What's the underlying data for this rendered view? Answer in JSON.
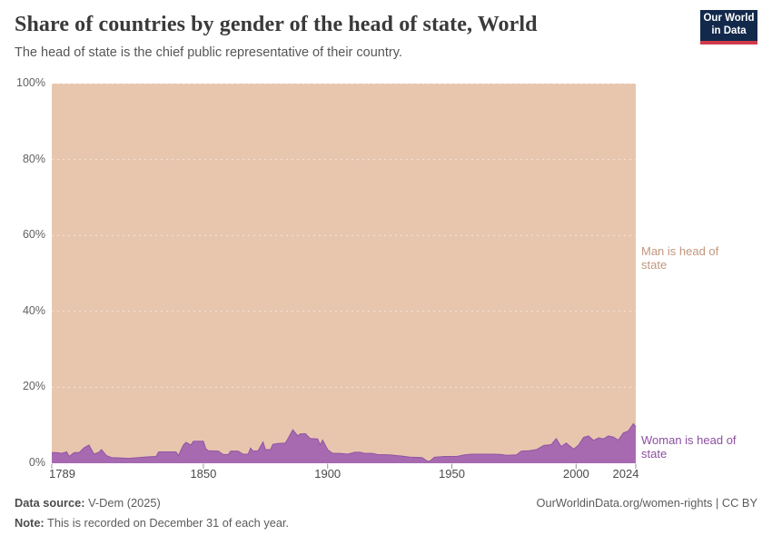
{
  "header": {
    "title": "Share of countries by gender of the head of state, World",
    "subtitle": "The head of state is the chief public representative of their country.",
    "logo": {
      "line1": "Our World",
      "line2": "in Data",
      "bg_color": "#12294b",
      "bar_color": "#cf3b4b"
    }
  },
  "chart_data": {
    "type": "area",
    "stacked": true,
    "title": "Share of countries by gender of the head of state, World",
    "xlabel": "",
    "ylabel": "",
    "x_range": [
      1789,
      2024
    ],
    "y_range": [
      0,
      100
    ],
    "grid": "dashed horizontal at 20% steps",
    "legend_position": "right-edge entity labels",
    "y_ticks": [
      {
        "value": 100,
        "label": "100%"
      },
      {
        "value": 80,
        "label": "80%"
      },
      {
        "value": 60,
        "label": "60%"
      },
      {
        "value": 40,
        "label": "40%"
      },
      {
        "value": 20,
        "label": "20%"
      },
      {
        "value": 0,
        "label": "0%"
      }
    ],
    "x_ticks": [
      {
        "value": 1789,
        "label": "1789",
        "align": "first"
      },
      {
        "value": 1850,
        "label": "1850",
        "align": "center"
      },
      {
        "value": 1900,
        "label": "1900",
        "align": "center"
      },
      {
        "value": 1950,
        "label": "1950",
        "align": "center"
      },
      {
        "value": 2000,
        "label": "2000",
        "align": "center"
      },
      {
        "value": 2024,
        "label": "2024",
        "align": "last"
      }
    ],
    "series": [
      {
        "name": "Woman is head of state",
        "fill_color": "#a76ab1",
        "stroke_color": "#9055a3",
        "label_color": "#8d4fa0",
        "unit": "% of countries",
        "points": [
          [
            1789,
            2.8
          ],
          [
            1791,
            2.8
          ],
          [
            1793,
            2.6
          ],
          [
            1795,
            3.0
          ],
          [
            1796,
            1.8
          ],
          [
            1798,
            2.8
          ],
          [
            1800,
            2.8
          ],
          [
            1802,
            4.1
          ],
          [
            1804,
            4.8
          ],
          [
            1806,
            2.4
          ],
          [
            1808,
            2.9
          ],
          [
            1809,
            3.6
          ],
          [
            1811,
            2.0
          ],
          [
            1813,
            1.5
          ],
          [
            1816,
            1.4
          ],
          [
            1820,
            1.3
          ],
          [
            1824,
            1.5
          ],
          [
            1828,
            1.7
          ],
          [
            1831,
            1.8
          ],
          [
            1832,
            3.0
          ],
          [
            1835,
            3.0
          ],
          [
            1839,
            3.0
          ],
          [
            1840,
            2.0
          ],
          [
            1841,
            3.5
          ],
          [
            1842,
            4.8
          ],
          [
            1843,
            5.5
          ],
          [
            1845,
            4.8
          ],
          [
            1846,
            5.8
          ],
          [
            1850,
            5.8
          ],
          [
            1851,
            3.8
          ],
          [
            1852,
            3.3
          ],
          [
            1856,
            3.2
          ],
          [
            1858,
            2.3
          ],
          [
            1860,
            2.3
          ],
          [
            1861,
            3.2
          ],
          [
            1864,
            3.2
          ],
          [
            1866,
            2.4
          ],
          [
            1868,
            2.4
          ],
          [
            1869,
            4.0
          ],
          [
            1870,
            3.2
          ],
          [
            1872,
            3.3
          ],
          [
            1874,
            5.6
          ],
          [
            1875,
            3.6
          ],
          [
            1877,
            3.6
          ],
          [
            1878,
            5.0
          ],
          [
            1880,
            5.2
          ],
          [
            1883,
            5.3
          ],
          [
            1884,
            6.4
          ],
          [
            1886,
            8.8
          ],
          [
            1888,
            7.2
          ],
          [
            1889,
            7.7
          ],
          [
            1891,
            7.8
          ],
          [
            1893,
            6.5
          ],
          [
            1896,
            6.4
          ],
          [
            1897,
            4.8
          ],
          [
            1898,
            6.1
          ],
          [
            1900,
            3.6
          ],
          [
            1902,
            2.6
          ],
          [
            1905,
            2.6
          ],
          [
            1908,
            2.4
          ],
          [
            1911,
            2.9
          ],
          [
            1913,
            2.9
          ],
          [
            1915,
            2.6
          ],
          [
            1918,
            2.6
          ],
          [
            1920,
            2.3
          ],
          [
            1925,
            2.2
          ],
          [
            1930,
            1.9
          ],
          [
            1933,
            1.6
          ],
          [
            1938,
            1.5
          ],
          [
            1940,
            0.6
          ],
          [
            1941,
            0.5
          ],
          [
            1943,
            1.6
          ],
          [
            1947,
            1.8
          ],
          [
            1952,
            1.8
          ],
          [
            1955,
            2.2
          ],
          [
            1958,
            2.4
          ],
          [
            1963,
            2.4
          ],
          [
            1967,
            2.4
          ],
          [
            1970,
            2.3
          ],
          [
            1972,
            2.1
          ],
          [
            1976,
            2.2
          ],
          [
            1978,
            3.2
          ],
          [
            1981,
            3.3
          ],
          [
            1984,
            3.6
          ],
          [
            1987,
            4.7
          ],
          [
            1990,
            4.9
          ],
          [
            1992,
            6.5
          ],
          [
            1994,
            4.4
          ],
          [
            1996,
            5.3
          ],
          [
            1999,
            3.7
          ],
          [
            2001,
            4.8
          ],
          [
            2003,
            6.8
          ],
          [
            2005,
            7.2
          ],
          [
            2007,
            6.0
          ],
          [
            2009,
            6.7
          ],
          [
            2011,
            6.4
          ],
          [
            2013,
            7.2
          ],
          [
            2015,
            6.9
          ],
          [
            2017,
            6.1
          ],
          [
            2019,
            8.0
          ],
          [
            2021,
            8.5
          ],
          [
            2023,
            10.4
          ],
          [
            2024,
            9.6
          ]
        ]
      },
      {
        "name": "Man is head of state",
        "fill_color": "#e8c6ae",
        "label_color": "#c0977f",
        "unit": "% of countries",
        "derivation": "100 minus woman share (stacked remainder to 100%)"
      }
    ]
  },
  "footer": {
    "data_source_label": "Data source:",
    "data_source_value": " V-Dem (2025)",
    "note_label": "Note:",
    "note_value": " This is recorded on December 31 of each year.",
    "link": "OurWorldinData.org/women-rights | CC BY"
  }
}
